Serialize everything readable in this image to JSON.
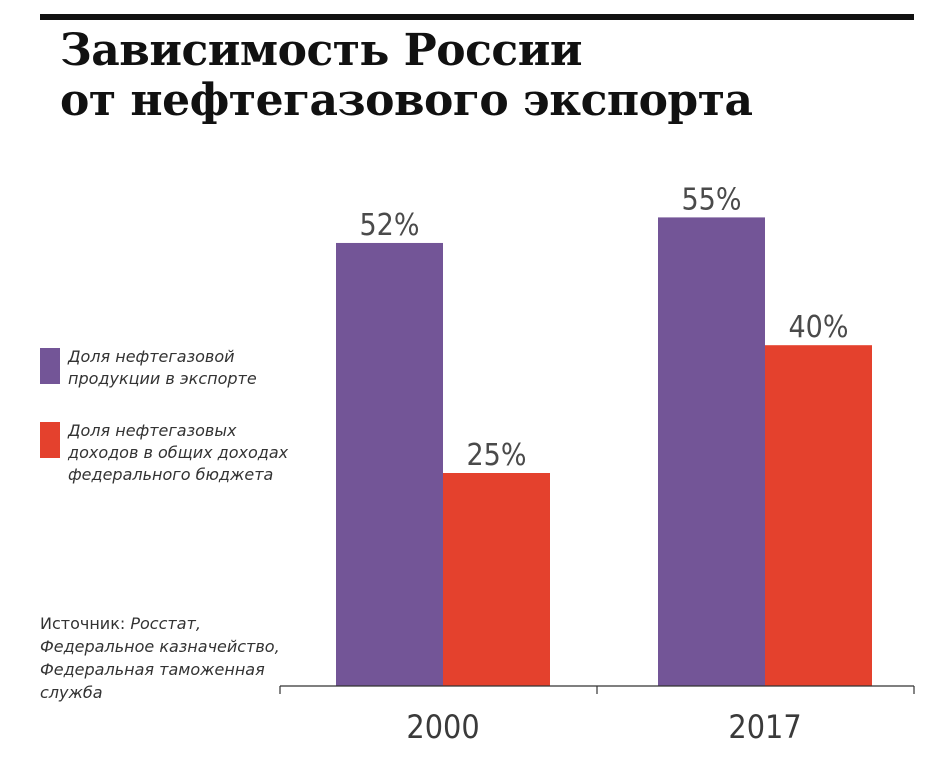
{
  "title": {
    "line1": "Зависимость России",
    "line2": "от нефтегазового экспорта"
  },
  "legend": {
    "items": [
      {
        "label": "Доля нефтегазовой продукции в экспорте",
        "color": "#735597"
      },
      {
        "label": "Доля нефтегазовых доходов в общих доходах федерального бюджета",
        "color": "#e4412d"
      }
    ]
  },
  "source": {
    "head": "Источник:",
    "body": "Росстат, Федеральное казначейство, Федеральная таможенная служба"
  },
  "chart_data": {
    "type": "bar",
    "categories": [
      "2000",
      "2017"
    ],
    "series": [
      {
        "name": "Доля нефтегазовой продукции в экспорте",
        "values": [
          52,
          55
        ],
        "labels": [
          "52%",
          "55%"
        ],
        "color": "#735597"
      },
      {
        "name": "Доля нефтегазовых доходов в общих доходах федерального бюджета",
        "values": [
          25,
          40
        ],
        "labels": [
          "25%",
          "40%"
        ],
        "color": "#e4412d"
      }
    ],
    "ylim": [
      0,
      100
    ],
    "grid": false,
    "legend_position": "left"
  }
}
